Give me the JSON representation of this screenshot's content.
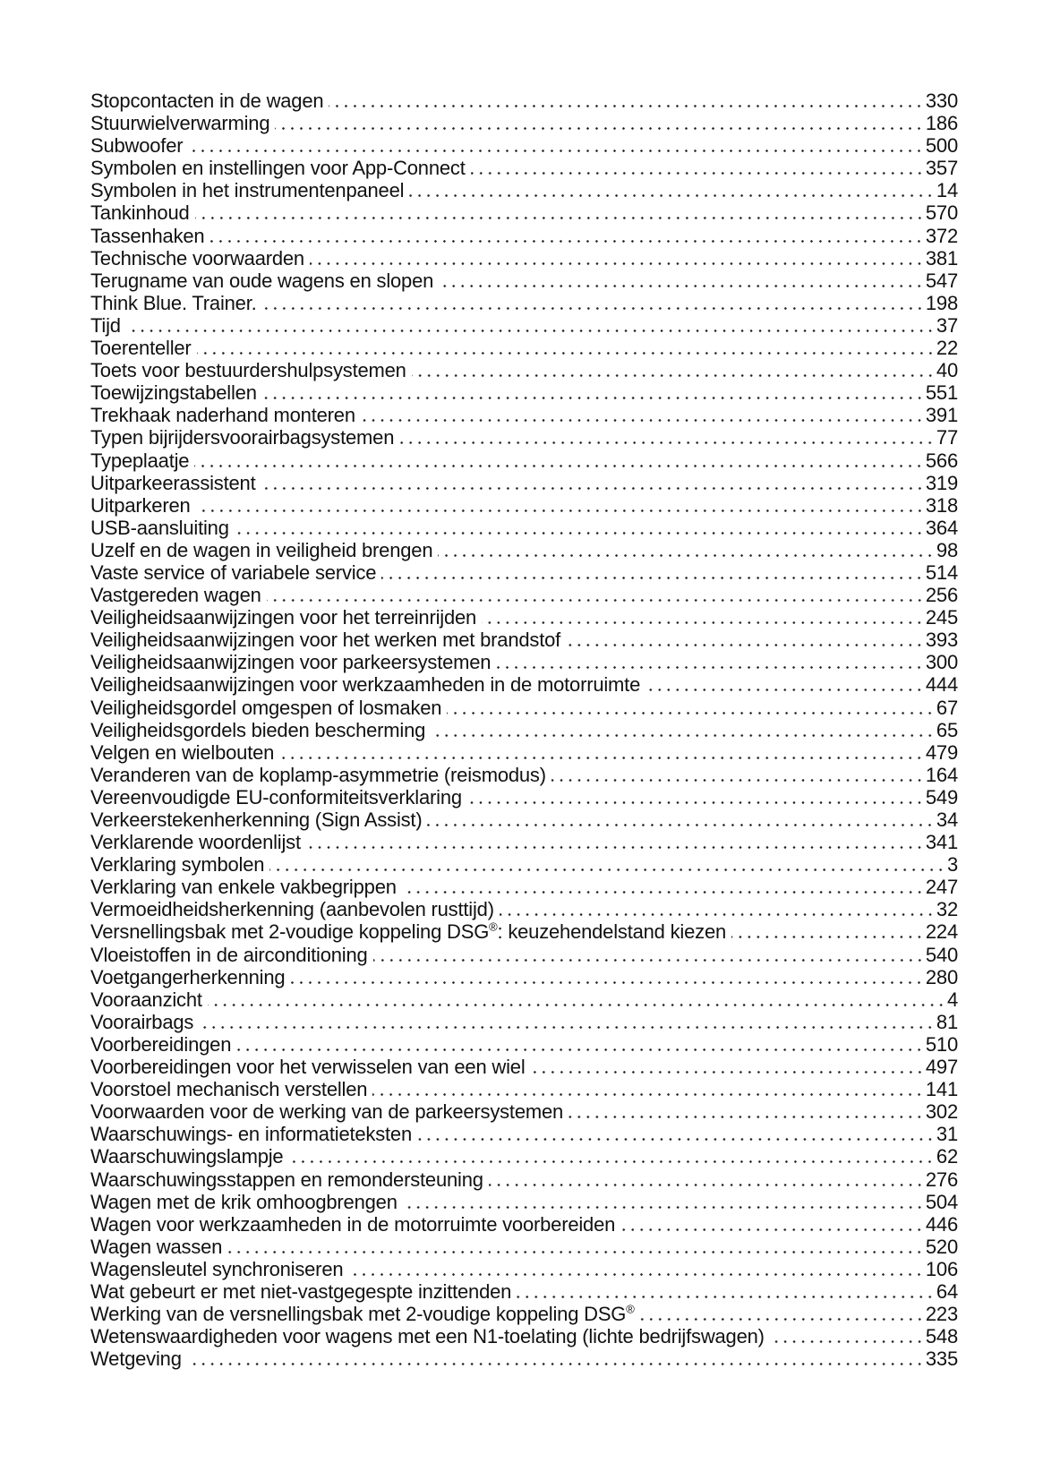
{
  "index": {
    "entries": [
      {
        "title": "Stopcontacten in de wagen",
        "page": "330"
      },
      {
        "title": "Stuurwielverwarming",
        "page": "186"
      },
      {
        "title": "Subwoofer",
        "page": "500"
      },
      {
        "title": "Symbolen en instellingen voor App-Connect",
        "page": "357"
      },
      {
        "title": "Symbolen in het instrumentenpaneel",
        "page": "14"
      },
      {
        "title": "Tankinhoud",
        "page": "570"
      },
      {
        "title": "Tassenhaken",
        "page": "372"
      },
      {
        "title": "Technische voorwaarden",
        "page": "381"
      },
      {
        "title": "Terugname van oude wagens en slopen",
        "page": "547"
      },
      {
        "title": "Think Blue. Trainer.",
        "page": "198"
      },
      {
        "title": "Tijd",
        "page": "37"
      },
      {
        "title": "Toerenteller",
        "page": "22"
      },
      {
        "title": "Toets voor bestuurdershulpsystemen",
        "page": "40"
      },
      {
        "title": "Toewijzingstabellen",
        "page": "551"
      },
      {
        "title": "Trekhaak naderhand monteren",
        "page": "391"
      },
      {
        "title": "Typen bijrijdersvoorairbagsystemen",
        "page": "77"
      },
      {
        "title": "Typeplaatje",
        "page": "566"
      },
      {
        "title": "Uitparkeerassistent",
        "page": "319"
      },
      {
        "title": "Uitparkeren",
        "page": "318"
      },
      {
        "title": "USB-aansluiting",
        "page": "364"
      },
      {
        "title": "Uzelf en de wagen in veiligheid brengen",
        "page": "98"
      },
      {
        "title": "Vaste service of variabele service",
        "page": "514"
      },
      {
        "title": "Vastgereden wagen",
        "page": "256"
      },
      {
        "title": "Veiligheidsaanwijzingen voor het terreinrijden",
        "page": "245"
      },
      {
        "title": "Veiligheidsaanwijzingen voor het werken met brandstof",
        "page": "393"
      },
      {
        "title": "Veiligheidsaanwijzingen voor parkeersystemen",
        "page": "300"
      },
      {
        "title": "Veiligheidsaanwijzingen voor werkzaamheden in de motorruimte",
        "page": "444"
      },
      {
        "title": "Veiligheidsgordel omgespen of losmaken",
        "page": "67"
      },
      {
        "title": "Veiligheidsgordels bieden bescherming",
        "page": "65"
      },
      {
        "title": "Velgen en wielbouten",
        "page": "479"
      },
      {
        "title": "Veranderen van de koplamp-asymmetrie (reismodus)",
        "page": "164"
      },
      {
        "title": "Vereenvoudigde EU-conformiteitsverklaring",
        "page": "549"
      },
      {
        "title": "Verkeerstekenherkenning (Sign Assist)",
        "page": "34"
      },
      {
        "title": "Verklarende woordenlijst",
        "page": "341"
      },
      {
        "title": "Verklaring symbolen",
        "page": "3"
      },
      {
        "title": "Verklaring van enkele vakbegrippen",
        "page": "247"
      },
      {
        "title": "Vermoeidheidsherkenning (aanbevolen rusttijd)",
        "page": "32"
      },
      {
        "title": "Versnellingsbak met 2-voudige koppeling DSG®: keuzehendelstand kiezen",
        "page": "224"
      },
      {
        "title": "Vloeistoffen in de airconditioning",
        "page": "540"
      },
      {
        "title": "Voetgangerherkenning",
        "page": "280"
      },
      {
        "title": "Vooraanzicht",
        "page": "4"
      },
      {
        "title": "Voorairbags",
        "page": "81"
      },
      {
        "title": "Voorbereidingen",
        "page": "510"
      },
      {
        "title": "Voorbereidingen voor het verwisselen van een wiel",
        "page": "497"
      },
      {
        "title": "Voorstoel mechanisch verstellen",
        "page": "141"
      },
      {
        "title": "Voorwaarden voor de werking van de parkeersystemen",
        "page": "302"
      },
      {
        "title": "Waarschuwings- en informatieteksten",
        "page": "31"
      },
      {
        "title": "Waarschuwingslampje",
        "page": "62"
      },
      {
        "title": "Waarschuwingsstappen en remondersteuning",
        "page": "276"
      },
      {
        "title": "Wagen met de krik omhoogbrengen",
        "page": "504"
      },
      {
        "title": "Wagen voor werkzaamheden in de motorruimte voorbereiden",
        "page": "446"
      },
      {
        "title": "Wagen wassen",
        "page": "520"
      },
      {
        "title": "Wagensleutel synchroniseren",
        "page": "106"
      },
      {
        "title": "Wat gebeurt er met niet-vastgegespte inzittenden",
        "page": "64"
      },
      {
        "title": "Werking van de versnellingsbak met 2-voudige koppeling DSG®",
        "page": "223"
      },
      {
        "title": "Wetenswaardigheden voor wagens met een N1-toelating (lichte bedrijfswagen)",
        "page": "548"
      },
      {
        "title": "Wetgeving",
        "page": "335"
      }
    ]
  }
}
